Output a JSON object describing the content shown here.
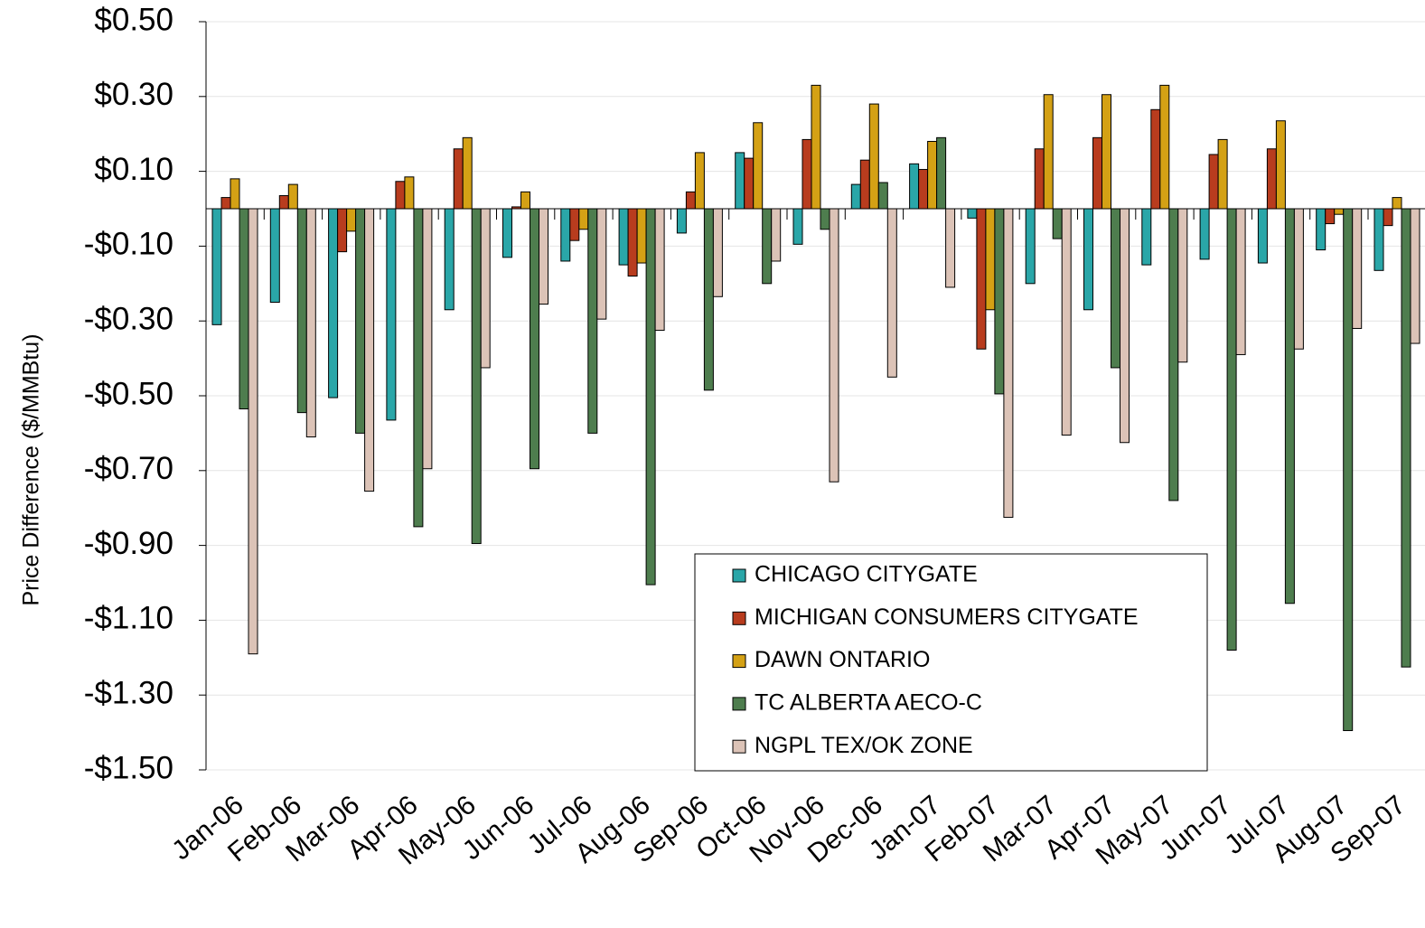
{
  "chart_data": {
    "type": "bar",
    "y_label": "Price Difference  ($/MMBtu)",
    "categories": [
      "Jan-06",
      "Feb-06",
      "Mar-06",
      "Apr-06",
      "May-06",
      "Jun-06",
      "Jul-06",
      "Aug-06",
      "Sep-06",
      "Oct-06",
      "Nov-06",
      "Dec-06",
      "Jan-07",
      "Feb-07",
      "Mar-07",
      "Apr-07",
      "May-07",
      "Jun-07",
      "Jul-07",
      "Aug-07",
      "Sep-07"
    ],
    "series": [
      {
        "name": "CHICAGO CITYGATE",
        "color": "#2aa6a8",
        "values": [
          -0.31,
          -0.25,
          -0.505,
          -0.565,
          -0.27,
          -0.13,
          -0.14,
          -0.15,
          -0.065,
          0.15,
          -0.095,
          0.065,
          0.12,
          -0.025,
          -0.2,
          -0.27,
          -0.15,
          -0.135,
          -0.145,
          -0.11,
          -0.165
        ]
      },
      {
        "name": "MICHIGAN CONSUMERS CITYGATE",
        "color": "#b83c1e",
        "values": [
          0.03,
          0.035,
          -0.115,
          0.073,
          0.16,
          0.005,
          -0.085,
          -0.18,
          0.045,
          0.135,
          0.185,
          0.13,
          0.105,
          -0.375,
          0.16,
          0.19,
          0.265,
          0.145,
          0.16,
          -0.04,
          -0.045
        ]
      },
      {
        "name": "DAWN ONTARIO",
        "color": "#d4a115",
        "values": [
          0.08,
          0.065,
          -0.06,
          0.085,
          0.19,
          0.045,
          -0.055,
          -0.145,
          0.15,
          0.23,
          0.33,
          0.28,
          0.18,
          -0.27,
          0.305,
          0.305,
          0.33,
          0.185,
          0.235,
          -0.015,
          0.03
        ]
      },
      {
        "name": "TC ALBERTA AECO-C",
        "color": "#4e7d4e",
        "values": [
          -0.535,
          -0.545,
          -0.6,
          -0.85,
          -0.895,
          -0.695,
          -0.6,
          -1.005,
          -0.485,
          -0.2,
          -0.055,
          0.07,
          0.19,
          -0.495,
          -0.08,
          -0.425,
          -0.78,
          -1.18,
          -1.055,
          -1.395,
          -1.225
        ]
      },
      {
        "name": "NGPL TEX/OK ZONE",
        "color": "#dcc3b7",
        "values": [
          -1.19,
          -0.61,
          -0.755,
          -0.695,
          -0.425,
          -0.255,
          -0.295,
          -0.325,
          -0.235,
          -0.14,
          -0.73,
          -0.45,
          -0.21,
          -0.825,
          -0.605,
          -0.625,
          -0.41,
          -0.39,
          -0.375,
          -0.32,
          -0.36
        ]
      }
    ],
    "ylim": [
      -1.5,
      0.5
    ],
    "yticks": [
      {
        "value": -1.5,
        "label": "-$1.50"
      },
      {
        "value": -1.3,
        "label": "-$1.30"
      },
      {
        "value": -1.1,
        "label": "-$1.10"
      },
      {
        "value": -0.9,
        "label": "-$0.90"
      },
      {
        "value": -0.7,
        "label": "-$0.70"
      },
      {
        "value": -0.5,
        "label": "-$0.50"
      },
      {
        "value": -0.3,
        "label": "-$0.30"
      },
      {
        "value": -0.1,
        "label": "-$0.10"
      },
      {
        "value": 0.1,
        "label": "$0.10"
      },
      {
        "value": 0.3,
        "label": "$0.30"
      },
      {
        "value": 0.5,
        "label": "$0.50"
      }
    ],
    "grid": true
  }
}
